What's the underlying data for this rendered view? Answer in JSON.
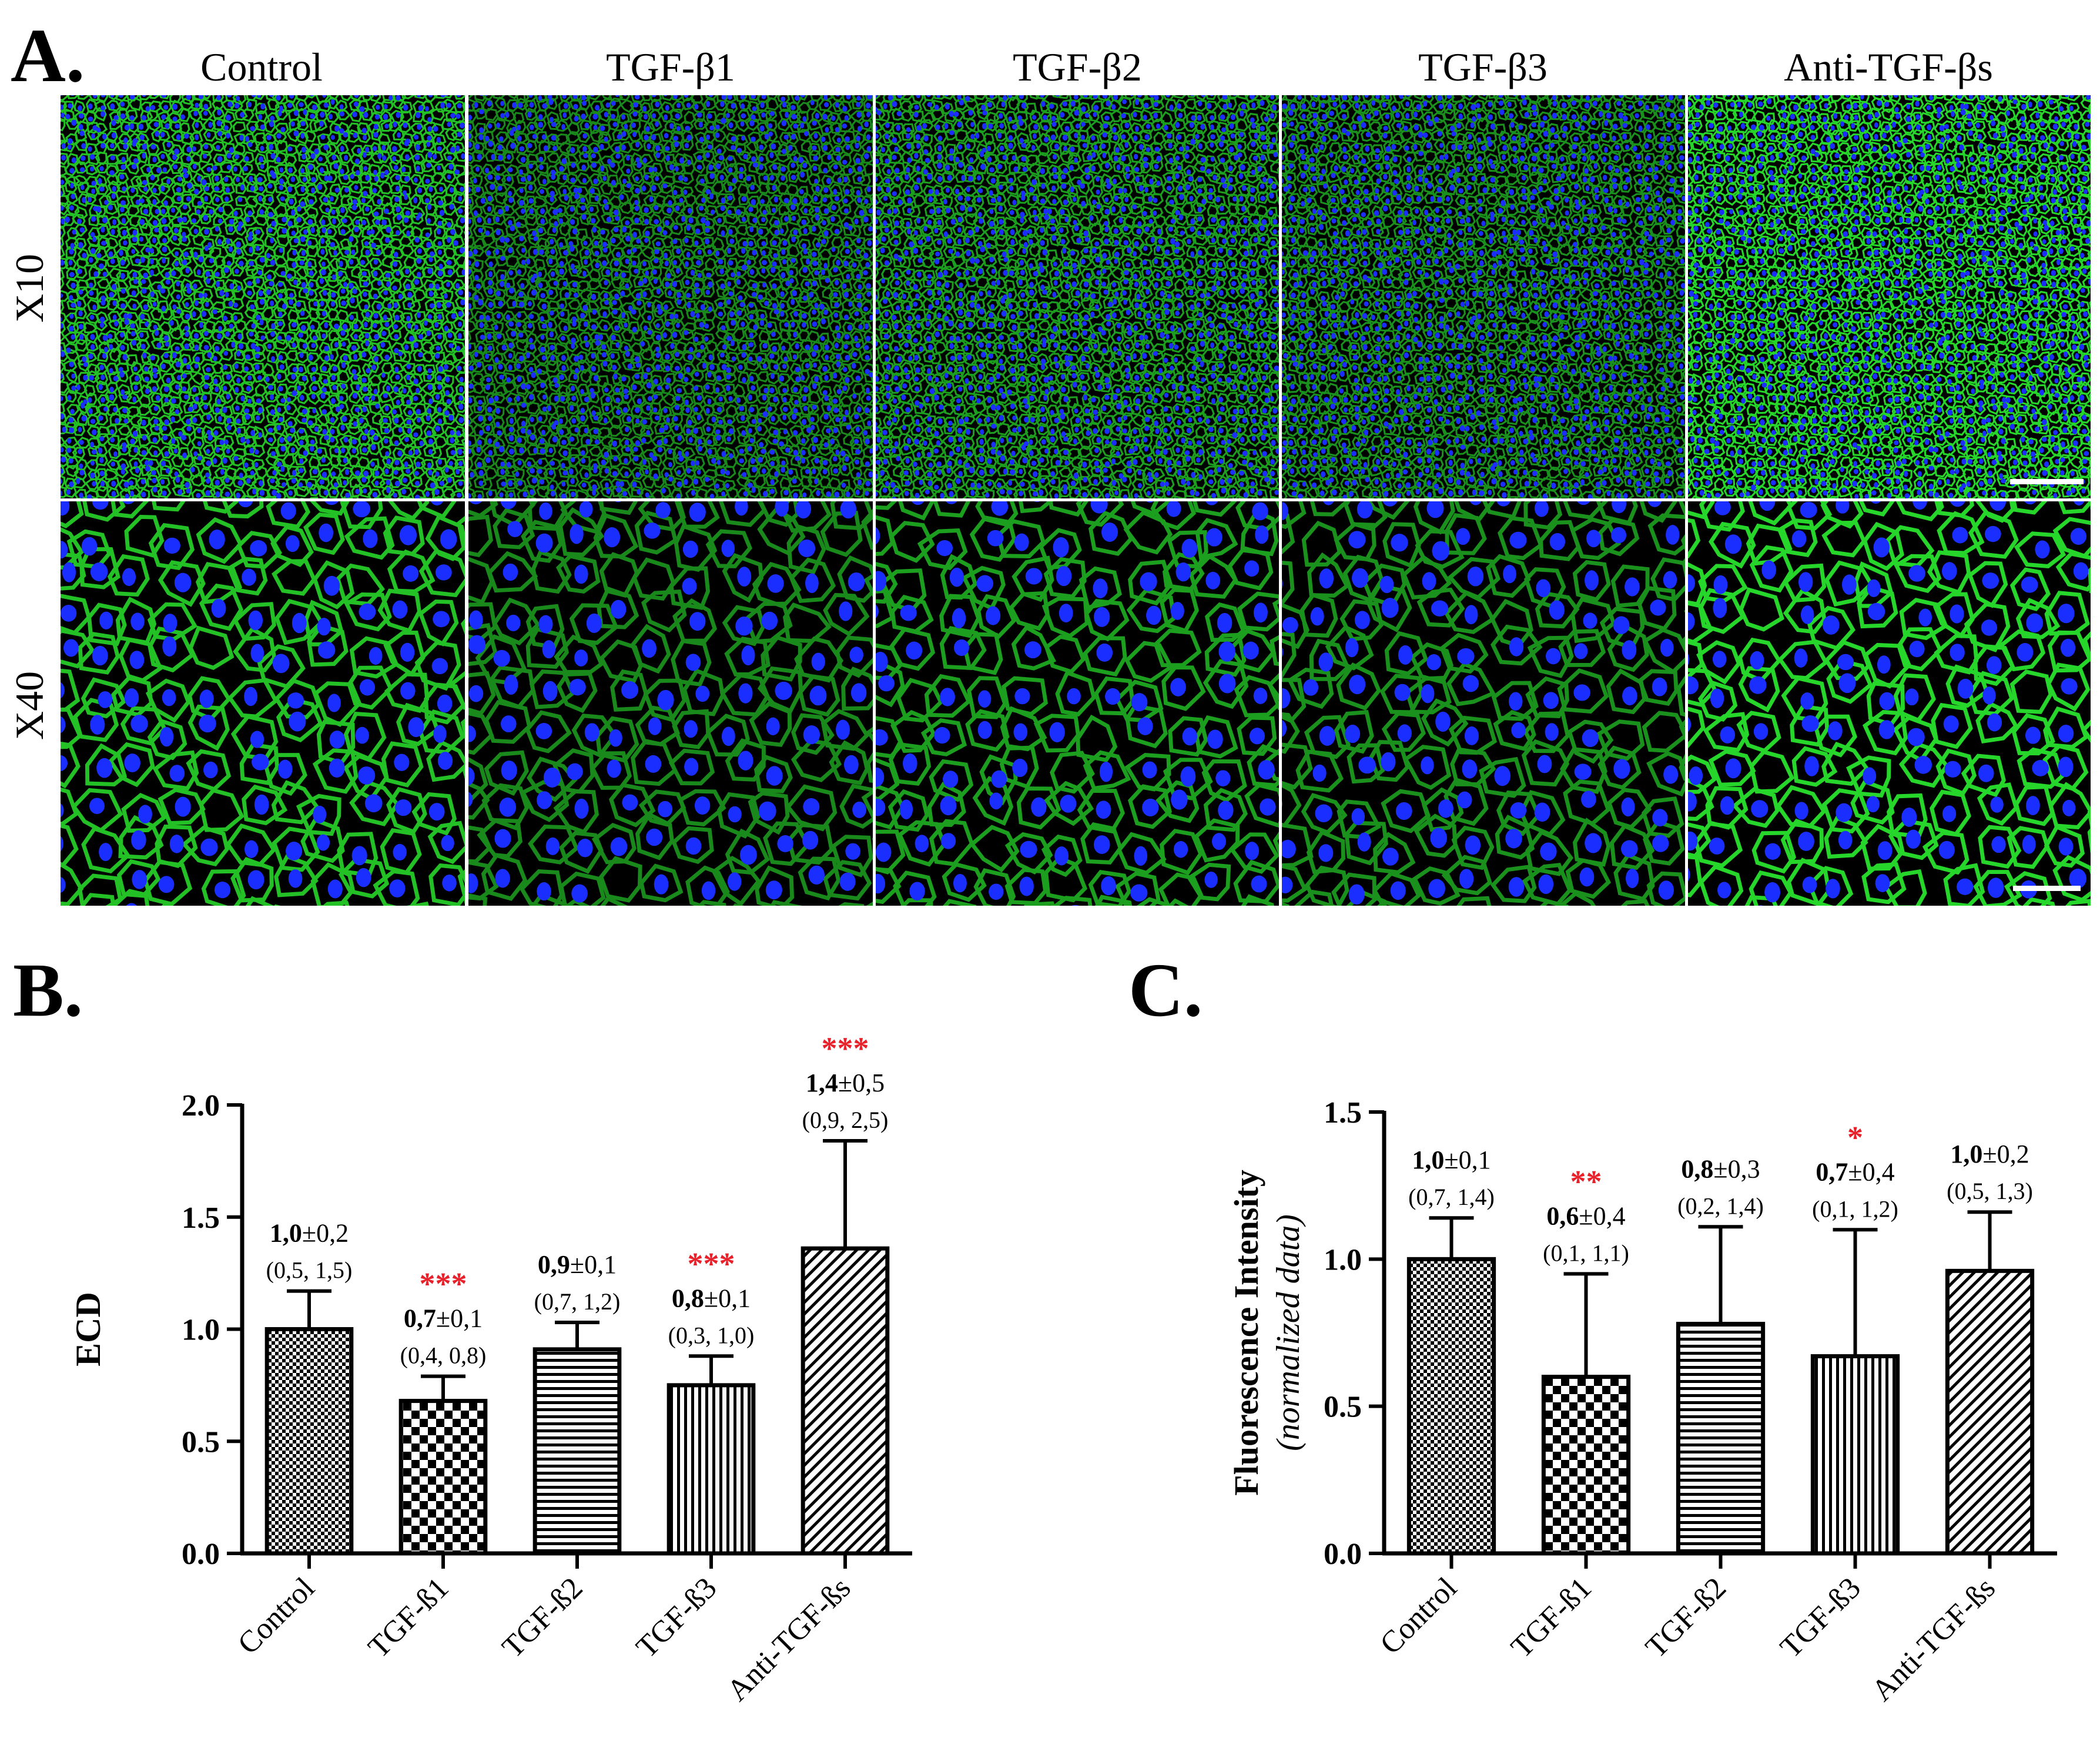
{
  "panel_a": {
    "label": "A.",
    "columns": [
      "Control",
      "TGF-β1",
      "TGF-β2",
      "TGF-β3",
      "Anti-TGF-βs"
    ],
    "rows": [
      "X10",
      "X40"
    ],
    "colors": {
      "nuclei": "#1a2fff",
      "membrane": "#27d62a",
      "background": "#000000"
    },
    "membrane_brightness": [
      0.85,
      0.45,
      0.6,
      0.5,
      1.0
    ]
  },
  "panel_b": {
    "label": "B."
  },
  "panel_c": {
    "label": "C."
  },
  "chart_data": [
    {
      "type": "bar",
      "panel": "B",
      "title": "",
      "xlabel": "",
      "ylabel": "ECD",
      "ylabel_sub": "",
      "ylim": [
        0,
        2.0
      ],
      "yticks": [
        "0.0",
        "0.5",
        "1.0",
        "1.5",
        "2.0"
      ],
      "ytick_values": [
        0,
        0.5,
        1.0,
        1.5,
        2.0
      ],
      "categories": [
        "Control",
        "TGF-ß1",
        "TGF-ß2",
        "TGF-ß3",
        "Anti-TGF-ßs"
      ],
      "values": [
        1.0,
        0.68,
        0.91,
        0.75,
        1.36
      ],
      "errors": [
        0.17,
        0.11,
        0.12,
        0.13,
        0.48
      ],
      "patterns": [
        "fine-checker",
        "checker",
        "horizontal",
        "vertical",
        "diagonal"
      ],
      "label_mean": [
        "1,0",
        "0,7",
        "0,9",
        "0,8",
        "1,4"
      ],
      "label_sd": [
        "±0,2",
        "±0,1",
        "±0,1",
        "±0,1",
        "±0,5"
      ],
      "label_range": [
        "(0,5, 1,5)",
        "(0,4, 0,8)",
        "(0,7, 1,2)",
        "(0,3, 1,0)",
        "(0,9, 2,5)"
      ],
      "significance": [
        "",
        "***",
        "",
        "***",
        "***"
      ],
      "significance_color": "#e8202a",
      "grid": false
    },
    {
      "type": "bar",
      "panel": "C",
      "title": "",
      "xlabel": "",
      "ylabel": "Fluorescence Intensity",
      "ylabel_sub": "(normalized data)",
      "ylim": [
        0,
        1.5
      ],
      "yticks": [
        "0.0",
        "0.5",
        "1.0",
        "1.5"
      ],
      "ytick_values": [
        0,
        0.5,
        1.0,
        1.5
      ],
      "categories": [
        "Control",
        "TGF-ß1",
        "TGF-ß2",
        "TGF-ß3",
        "Anti-TGF-ßs"
      ],
      "values": [
        1.0,
        0.6,
        0.78,
        0.67,
        0.96
      ],
      "errors": [
        0.14,
        0.35,
        0.33,
        0.43,
        0.2
      ],
      "patterns": [
        "fine-checker",
        "checker",
        "horizontal",
        "vertical",
        "diagonal"
      ],
      "label_mean": [
        "1,0",
        "0,6",
        "0,8",
        "0,7",
        "1,0"
      ],
      "label_sd": [
        "±0,1",
        "±0,4",
        "±0,3",
        "±0,4",
        "±0,2"
      ],
      "label_range": [
        "(0,7, 1,4)",
        "(0,1, 1,1)",
        "(0,2, 1,4)",
        "(0,1, 1,2)",
        "(0,5, 1,3)"
      ],
      "significance": [
        "",
        "**",
        "",
        "*",
        ""
      ],
      "significance_color": "#e8202a",
      "grid": false
    }
  ]
}
